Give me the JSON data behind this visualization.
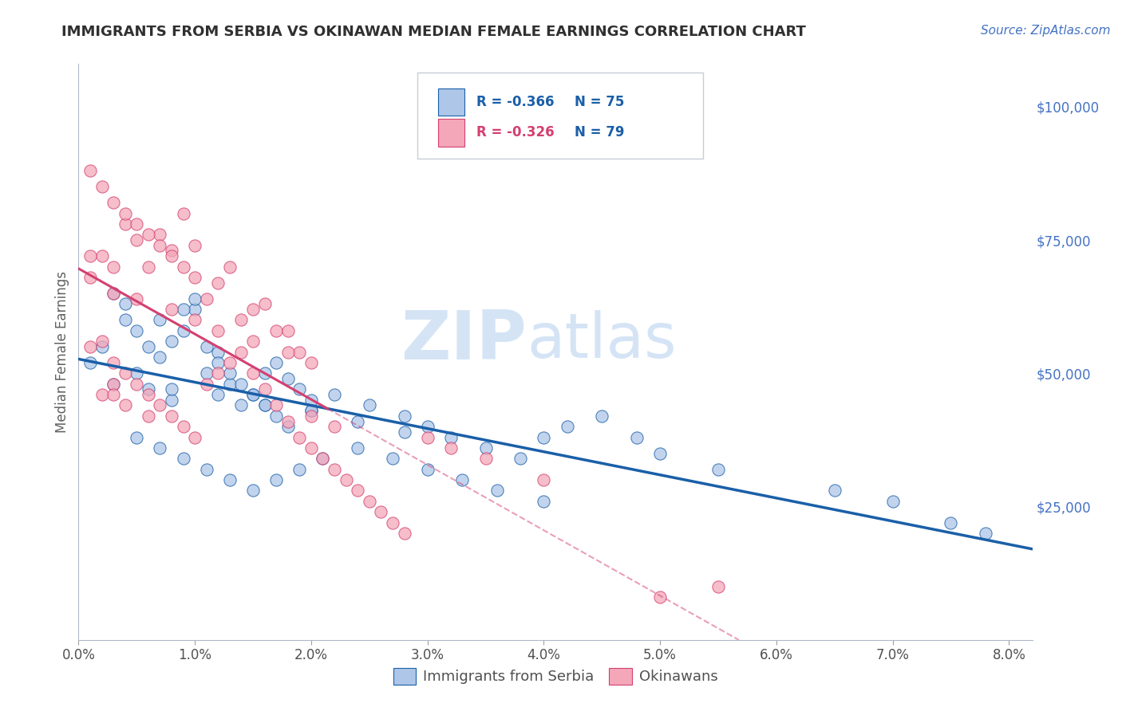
{
  "title": "IMMIGRANTS FROM SERBIA VS OKINAWAN MEDIAN FEMALE EARNINGS CORRELATION CHART",
  "source_text": "Source: ZipAtlas.com",
  "ylabel": "Median Female Earnings",
  "xlim": [
    0.0,
    0.082
  ],
  "ylim": [
    0,
    108000
  ],
  "xtick_labels": [
    "0.0%",
    "1.0%",
    "2.0%",
    "3.0%",
    "4.0%",
    "5.0%",
    "6.0%",
    "7.0%",
    "8.0%"
  ],
  "xtick_values": [
    0.0,
    0.01,
    0.02,
    0.03,
    0.04,
    0.05,
    0.06,
    0.07,
    0.08
  ],
  "ytick_labels": [
    "$25,000",
    "$50,000",
    "$75,000",
    "$100,000"
  ],
  "ytick_values": [
    25000,
    50000,
    75000,
    100000
  ],
  "legend_labels": [
    "Immigrants from Serbia",
    "Okinawans"
  ],
  "legend_R": [
    -0.366,
    -0.326
  ],
  "legend_N": [
    75,
    79
  ],
  "serbia_color": "#aec6e8",
  "okinawa_color": "#f4a7b9",
  "serbia_line_color": "#1a5fa8",
  "okinawa_line_color": "#d44070",
  "watermark_ZIP": "ZIP",
  "watermark_atlas": "atlas",
  "watermark_color": "#d5e4f5",
  "title_color": "#303030",
  "axis_label_color": "#606060",
  "right_ytick_color": "#4472c4",
  "background_color": "#ffffff",
  "grid_color": "#c8d4e8",
  "serbia_x": [
    0.001,
    0.002,
    0.003,
    0.004,
    0.005,
    0.006,
    0.007,
    0.008,
    0.009,
    0.01,
    0.011,
    0.012,
    0.013,
    0.014,
    0.015,
    0.016,
    0.017,
    0.018,
    0.019,
    0.02,
    0.003,
    0.004,
    0.005,
    0.006,
    0.007,
    0.008,
    0.009,
    0.01,
    0.011,
    0.012,
    0.013,
    0.014,
    0.015,
    0.016,
    0.017,
    0.018,
    0.02,
    0.022,
    0.025,
    0.028,
    0.03,
    0.032,
    0.035,
    0.038,
    0.04,
    0.042,
    0.045,
    0.048,
    0.05,
    0.055,
    0.005,
    0.007,
    0.009,
    0.011,
    0.013,
    0.015,
    0.017,
    0.019,
    0.021,
    0.024,
    0.027,
    0.03,
    0.033,
    0.036,
    0.04,
    0.008,
    0.012,
    0.016,
    0.02,
    0.024,
    0.028,
    0.065,
    0.07,
    0.075,
    0.078
  ],
  "serbia_y": [
    52000,
    55000,
    48000,
    60000,
    50000,
    47000,
    53000,
    45000,
    58000,
    62000,
    50000,
    54000,
    48000,
    44000,
    46000,
    50000,
    52000,
    49000,
    47000,
    45000,
    65000,
    63000,
    58000,
    55000,
    60000,
    56000,
    62000,
    64000,
    55000,
    52000,
    50000,
    48000,
    46000,
    44000,
    42000,
    40000,
    43000,
    46000,
    44000,
    42000,
    40000,
    38000,
    36000,
    34000,
    38000,
    40000,
    42000,
    38000,
    35000,
    32000,
    38000,
    36000,
    34000,
    32000,
    30000,
    28000,
    30000,
    32000,
    34000,
    36000,
    34000,
    32000,
    30000,
    28000,
    26000,
    47000,
    46000,
    44000,
    43000,
    41000,
    39000,
    28000,
    26000,
    22000,
    20000
  ],
  "okinawa_x": [
    0.001,
    0.002,
    0.003,
    0.004,
    0.005,
    0.006,
    0.007,
    0.008,
    0.009,
    0.01,
    0.011,
    0.012,
    0.013,
    0.014,
    0.015,
    0.016,
    0.017,
    0.018,
    0.019,
    0.02,
    0.001,
    0.002,
    0.003,
    0.004,
    0.005,
    0.006,
    0.007,
    0.008,
    0.009,
    0.01,
    0.001,
    0.002,
    0.003,
    0.004,
    0.005,
    0.006,
    0.007,
    0.008,
    0.009,
    0.01,
    0.011,
    0.012,
    0.013,
    0.014,
    0.015,
    0.016,
    0.017,
    0.018,
    0.019,
    0.02,
    0.021,
    0.022,
    0.023,
    0.024,
    0.025,
    0.026,
    0.027,
    0.028,
    0.02,
    0.022,
    0.03,
    0.032,
    0.035,
    0.04,
    0.005,
    0.008,
    0.01,
    0.012,
    0.015,
    0.018,
    0.002,
    0.004,
    0.006,
    0.003,
    0.05,
    0.001,
    0.003,
    0.003,
    0.055
  ],
  "okinawa_y": [
    68000,
    72000,
    65000,
    78000,
    75000,
    70000,
    76000,
    73000,
    80000,
    74000,
    64000,
    67000,
    70000,
    60000,
    62000,
    63000,
    58000,
    58000,
    54000,
    52000,
    88000,
    85000,
    82000,
    80000,
    78000,
    76000,
    74000,
    72000,
    70000,
    68000,
    55000,
    56000,
    52000,
    50000,
    48000,
    46000,
    44000,
    42000,
    40000,
    38000,
    48000,
    50000,
    52000,
    54000,
    50000,
    47000,
    44000,
    41000,
    38000,
    36000,
    34000,
    32000,
    30000,
    28000,
    26000,
    24000,
    22000,
    20000,
    42000,
    40000,
    38000,
    36000,
    34000,
    30000,
    64000,
    62000,
    60000,
    58000,
    56000,
    54000,
    46000,
    44000,
    42000,
    48000,
    8000,
    72000,
    70000,
    46000,
    10000
  ]
}
